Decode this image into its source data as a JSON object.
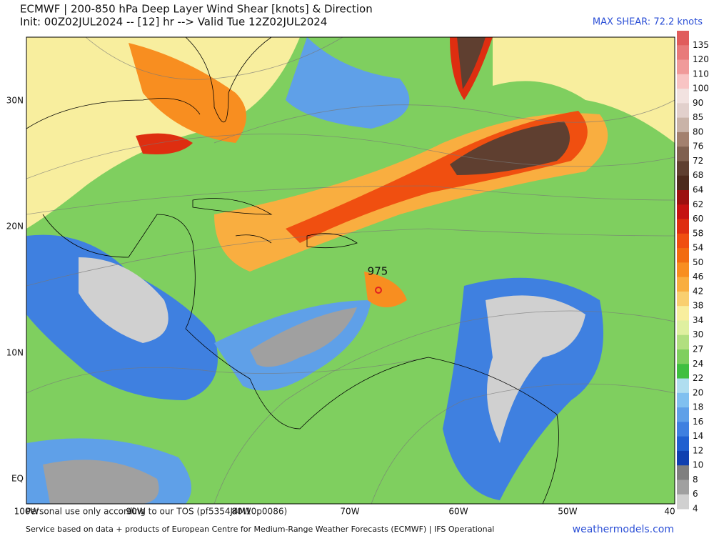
{
  "header": {
    "title": "ECMWF | 200-850 hPa Deep Layer Wind Shear [knots] & Direction",
    "subtitle": "Init: 00Z02JUL2024 -- [12] hr --> Valid Tue 12Z02JUL2024",
    "max_shear": "MAX SHEAR: 72.2 knots"
  },
  "map": {
    "lat_labels": [
      "30N",
      "20N",
      "10N",
      "EQ"
    ],
    "lon_labels": [
      "100W",
      "90W",
      "80W",
      "70W",
      "60W",
      "50W",
      "40"
    ],
    "annotation": "975",
    "disclaimer": "Personal use only according to our TOS (pf5354J4M10p0086)"
  },
  "colorbar": {
    "levels": [
      {
        "label": 135,
        "color": "#e05c5c"
      },
      {
        "label": 120,
        "color": "#e87a7a"
      },
      {
        "label": 110,
        "color": "#f09a9a"
      },
      {
        "label": 100,
        "color": "#f8c4c4"
      },
      {
        "label": 90,
        "color": "#f2e2e0"
      },
      {
        "label": 85,
        "color": "#e2d0cc"
      },
      {
        "label": 80,
        "color": "#c9b3a8"
      },
      {
        "label": 76,
        "color": "#a3806e"
      },
      {
        "label": 72,
        "color": "#80604f"
      },
      {
        "label": 68,
        "color": "#5f3f30"
      },
      {
        "label": 64,
        "color": "#4d2a1c"
      },
      {
        "label": 62,
        "color": "#9c1010"
      },
      {
        "label": 60,
        "color": "#c51212"
      },
      {
        "label": 58,
        "color": "#de2e10"
      },
      {
        "label": 54,
        "color": "#f04f10"
      },
      {
        "label": 50,
        "color": "#f26c10"
      },
      {
        "label": 46,
        "color": "#f88e20"
      },
      {
        "label": 42,
        "color": "#f9ae40"
      },
      {
        "label": 38,
        "color": "#f9cf70"
      },
      {
        "label": 34,
        "color": "#f8ee9e"
      },
      {
        "label": 30,
        "color": "#dff0a0"
      },
      {
        "label": 27,
        "color": "#b1df80"
      },
      {
        "label": 24,
        "color": "#7fcf5f"
      },
      {
        "label": 22,
        "color": "#3fbf40"
      },
      {
        "label": 20,
        "color": "#b0def0"
      },
      {
        "label": 18,
        "color": "#80c0f0"
      },
      {
        "label": 16,
        "color": "#5fa0e8"
      },
      {
        "label": 14,
        "color": "#3f80e0"
      },
      {
        "label": 12,
        "color": "#2060d0"
      },
      {
        "label": 10,
        "color": "#1040b0"
      },
      {
        "label": 8,
        "color": "#7f7f7f"
      },
      {
        "label": 6,
        "color": "#a0a0a0"
      },
      {
        "label": 4,
        "color": "#d0d0d0"
      }
    ]
  },
  "footer": {
    "source": "Service based on data + products of European Centre for Medium-Range Weather Forecasts (ECMWF) | IFS Operational",
    "site": "weathermodels.com"
  }
}
